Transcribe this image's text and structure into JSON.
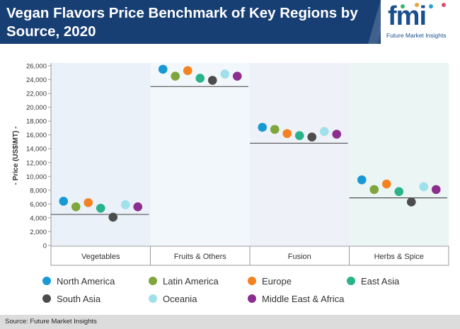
{
  "header": {
    "title": "Vegan Flavors Price Benchmark of Key Regions by Source, 2020"
  },
  "logo": {
    "mark": "fmi",
    "tagline": "Future Market Insights",
    "dot_colors": [
      "#3cb371",
      "#e8a33d",
      "#2a9fd6",
      "#d94f70"
    ]
  },
  "footer": {
    "source": "Source: Future Market Insights"
  },
  "chart_data": {
    "type": "scatter",
    "ylabel": "- Price (US$\\MT) -",
    "ylim": [
      0,
      26000
    ],
    "yticks": [
      "0",
      "2,000",
      "4,000",
      "6,000",
      "8,000",
      "10,000",
      "12,000",
      "14,000",
      "16,000",
      "18,000",
      "20,000",
      "22,000",
      "24,000",
      "26,000"
    ],
    "categories": [
      "Vegetables",
      "Fruits & Others",
      "Fusion",
      "Herbs & Spice"
    ],
    "category_backgrounds": [
      "#eaf1f9",
      "#f1f7fb",
      "#eef1f8",
      "#eaf5f4"
    ],
    "averages": [
      4500,
      23000,
      14800,
      6900
    ],
    "series": [
      {
        "name": "North America",
        "color": "#1899d6",
        "values": [
          6400,
          25500,
          17100,
          9500
        ]
      },
      {
        "name": "Latin America",
        "color": "#7ea63b",
        "values": [
          5600,
          24500,
          16800,
          8100
        ]
      },
      {
        "name": "Europe",
        "color": "#f58220",
        "values": [
          6200,
          25300,
          16200,
          8900
        ]
      },
      {
        "name": "East Asia",
        "color": "#2ab38b",
        "values": [
          5400,
          24200,
          15900,
          7800
        ]
      },
      {
        "name": "South Asia",
        "color": "#4d4d4d",
        "values": [
          4100,
          23900,
          15700,
          6300
        ]
      },
      {
        "name": "Oceania",
        "color": "#a0e0ea",
        "values": [
          5900,
          24800,
          16500,
          8500
        ]
      },
      {
        "name": "Middle East & Africa",
        "color": "#8b2e8f",
        "values": [
          5600,
          24500,
          16100,
          8100
        ]
      }
    ],
    "legend_position": "bottom"
  }
}
